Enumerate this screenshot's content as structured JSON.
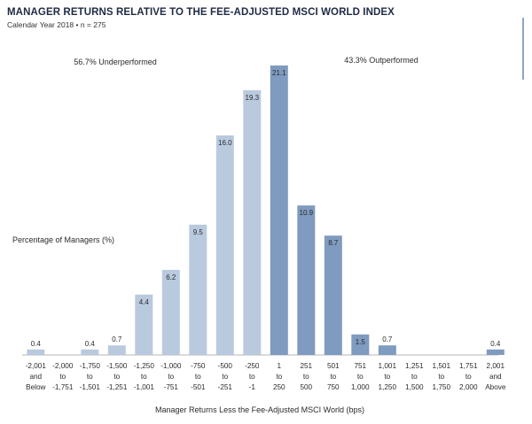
{
  "header": {
    "title": "MANAGER RETURNS RELATIVE TO THE FEE-ADJUSTED MSCI WORLD INDEX",
    "subtitle": "Calendar Year 2018 • n = 275"
  },
  "colors": {
    "underperformed": "#b9cadf",
    "outperformed": "#7f9bbf",
    "accent": "#8fa6c4"
  },
  "chart_data": {
    "type": "bar",
    "title": "MANAGER RETURNS RELATIVE TO THE FEE-ADJUSTED MSCI WORLD INDEX",
    "subtitle": "Calendar Year 2018 • n = 275",
    "xlabel": "Manager Returns Less the Fee-Adjusted MSCI World (bps)",
    "ylabel": "Percentage of Managers (%)",
    "categories": [
      [
        "-2,001",
        "and",
        "Below"
      ],
      [
        "-2,000",
        "to",
        "-1,751"
      ],
      [
        "-1,750",
        "to",
        "-1,501"
      ],
      [
        "-1,500",
        "to",
        "-1,251"
      ],
      [
        "-1,250",
        "to",
        "-1,001"
      ],
      [
        "-1,000",
        "to",
        "-751"
      ],
      [
        "-750",
        "to",
        "-501"
      ],
      [
        "-500",
        "to",
        "-251"
      ],
      [
        "-250",
        "to",
        "-1"
      ],
      [
        "1",
        "to",
        "250"
      ],
      [
        "251",
        "to",
        "500"
      ],
      [
        "501",
        "to",
        "750"
      ],
      [
        "751",
        "to",
        "1,000"
      ],
      [
        "1,001",
        "to",
        "1,250"
      ],
      [
        "1,251",
        "to",
        "1,500"
      ],
      [
        "1,501",
        "to",
        "1,750"
      ],
      [
        "1,751",
        "to",
        "2,000"
      ],
      [
        "2,001",
        "and",
        "Above"
      ]
    ],
    "values": [
      0.4,
      0,
      0.4,
      0.7,
      4.4,
      6.2,
      9.5,
      16.0,
      19.3,
      21.1,
      10.9,
      8.7,
      1.5,
      0.7,
      0,
      0,
      0,
      0.4
    ],
    "labels": [
      "0.4",
      "",
      "0.4",
      "0.7",
      "4.4",
      "6.2",
      "9.5",
      "16.0",
      "19.3",
      "21.1",
      "10.9",
      "8.7",
      "1.5",
      "0.7",
      "",
      "",
      "",
      "0.4"
    ],
    "groups": [
      "under",
      "under",
      "under",
      "under",
      "under",
      "under",
      "under",
      "under",
      "under",
      "out",
      "out",
      "out",
      "out",
      "out",
      "out",
      "out",
      "out",
      "out"
    ],
    "annotations": {
      "underperformed": "56.7% Underperformed",
      "outperformed": "43.3% Outperformed"
    },
    "ylim": [
      0,
      21.1
    ],
    "grid": false,
    "legend": "none"
  }
}
